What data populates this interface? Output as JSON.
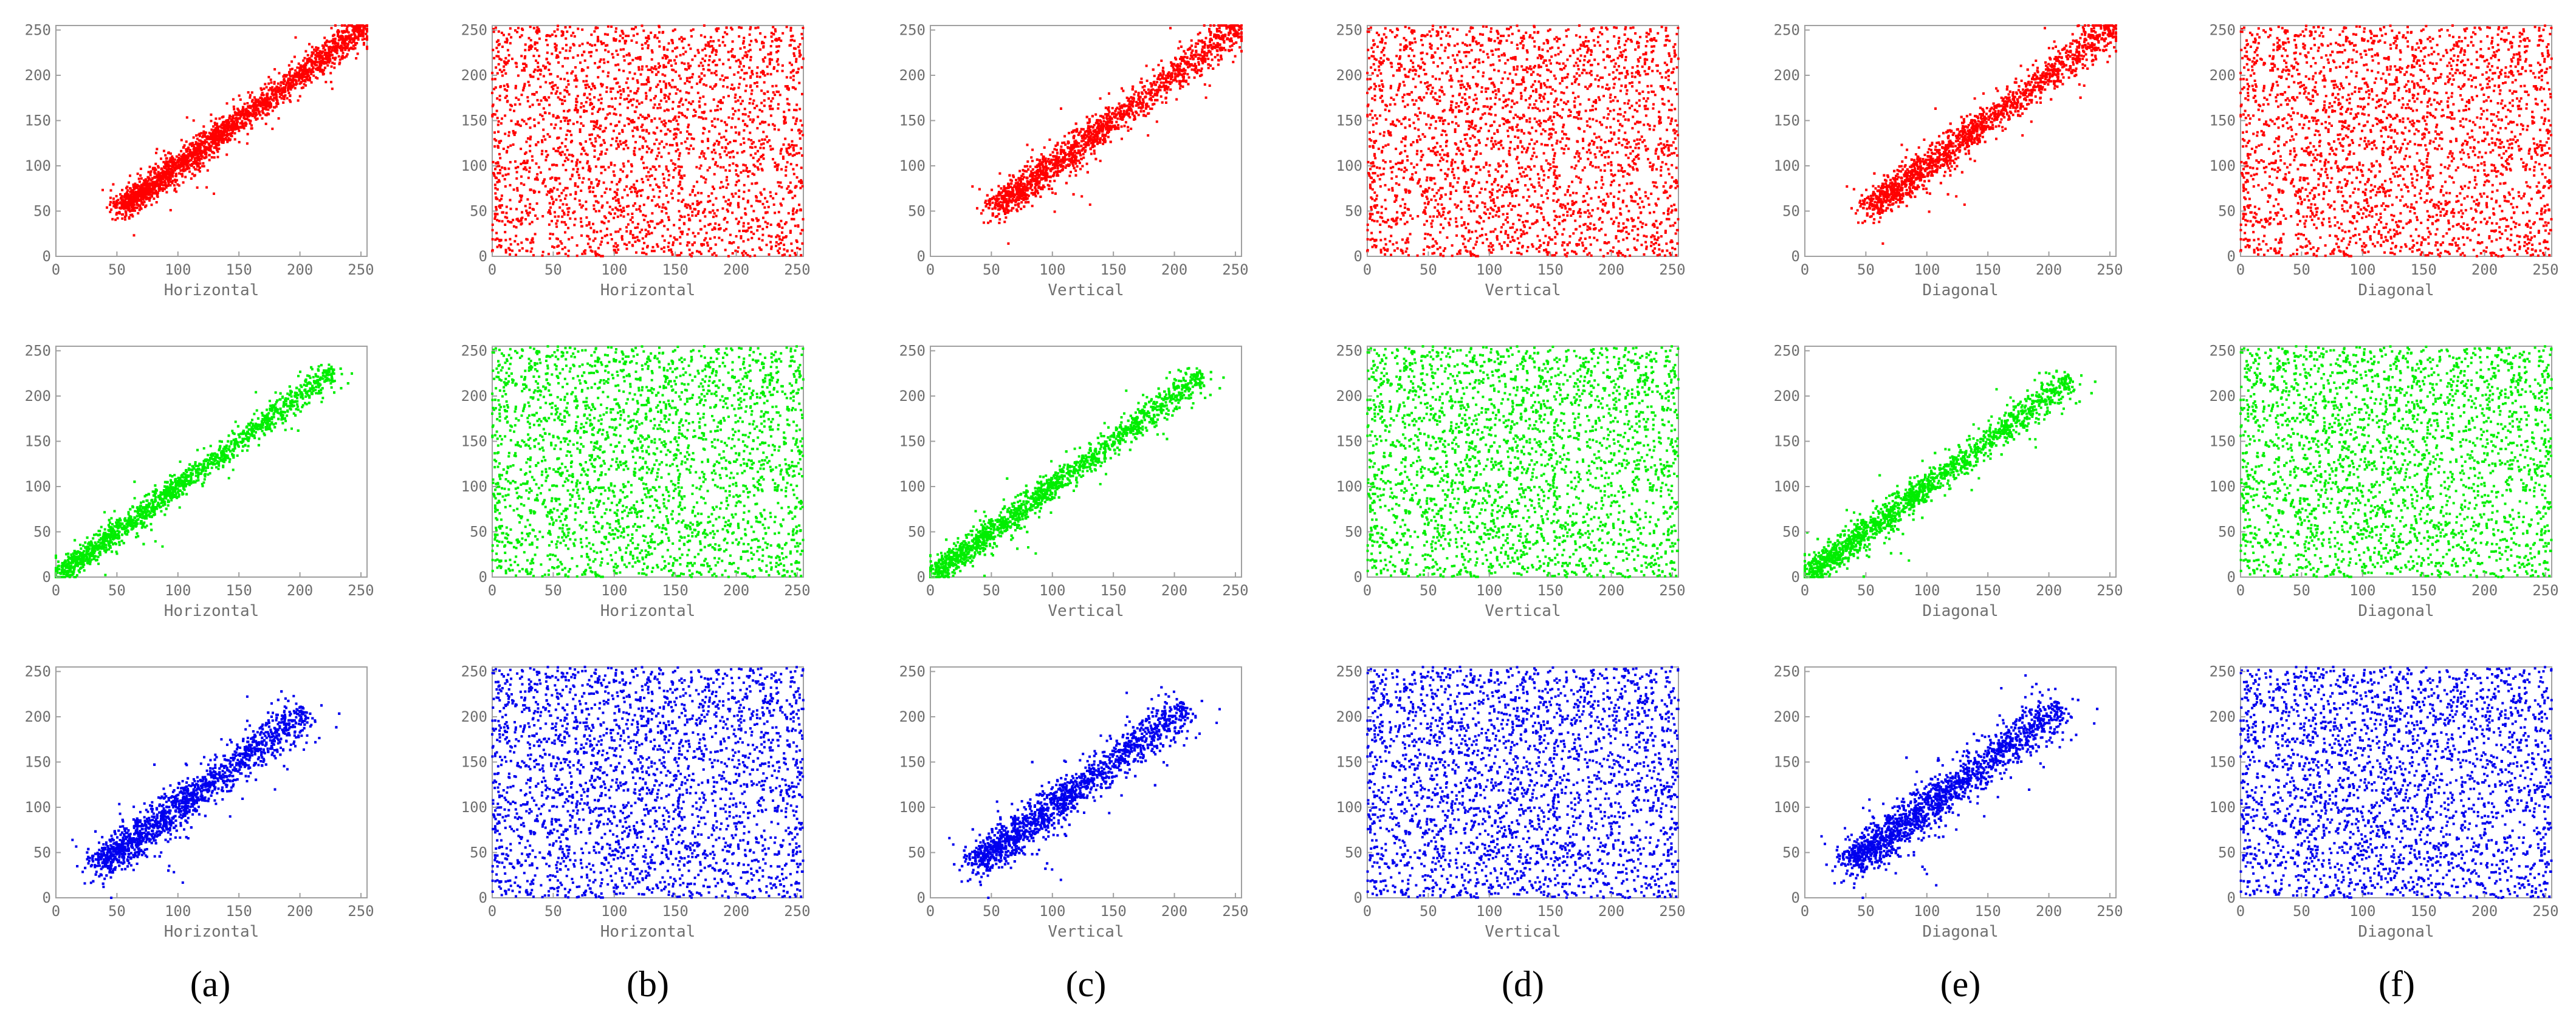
{
  "figure": {
    "captions": [
      "(a)",
      "(b)",
      "(c)",
      "(d)",
      "(e)",
      "(f)"
    ]
  },
  "chart_data": [
    {
      "type": "scatter",
      "title": "",
      "xlabel": "Horizontal",
      "ylabel": "",
      "xlim": [
        0,
        255
      ],
      "ylim": [
        0,
        255
      ],
      "xticks": [
        0,
        50,
        100,
        150,
        200,
        250
      ],
      "yticks": [
        0,
        50,
        100,
        150,
        200,
        250
      ],
      "color": "#ff0000",
      "pattern": "correlated",
      "x_range": [
        55,
        255
      ],
      "y_range": [
        55,
        255
      ],
      "spread": 9,
      "n_points": 2200
    },
    {
      "type": "scatter",
      "title": "",
      "xlabel": "Horizontal",
      "ylabel": "",
      "xlim": [
        0,
        255
      ],
      "ylim": [
        0,
        255
      ],
      "xticks": [
        0,
        50,
        100,
        150,
        200,
        250
      ],
      "yticks": [
        0,
        50,
        100,
        150,
        200,
        250
      ],
      "color": "#ff0000",
      "pattern": "uniform",
      "x_range": [
        0,
        255
      ],
      "y_range": [
        0,
        255
      ],
      "spread": 0,
      "n_points": 2600
    },
    {
      "type": "scatter",
      "title": "",
      "xlabel": "Vertical",
      "ylabel": "",
      "xlim": [
        0,
        255
      ],
      "ylim": [
        0,
        255
      ],
      "xticks": [
        0,
        50,
        100,
        150,
        200,
        250
      ],
      "yticks": [
        0,
        50,
        100,
        150,
        200,
        250
      ],
      "color": "#ff0000",
      "pattern": "correlated",
      "x_range": [
        55,
        255
      ],
      "y_range": [
        55,
        255
      ],
      "spread": 11,
      "n_points": 2200
    },
    {
      "type": "scatter",
      "title": "",
      "xlabel": "Vertical",
      "ylabel": "",
      "xlim": [
        0,
        255
      ],
      "ylim": [
        0,
        255
      ],
      "xticks": [
        0,
        50,
        100,
        150,
        200,
        250
      ],
      "yticks": [
        0,
        50,
        100,
        150,
        200,
        250
      ],
      "color": "#ff0000",
      "pattern": "uniform",
      "x_range": [
        0,
        255
      ],
      "y_range": [
        0,
        255
      ],
      "spread": 0,
      "n_points": 2600
    },
    {
      "type": "scatter",
      "title": "",
      "xlabel": "Diagonal",
      "ylabel": "",
      "xlim": [
        0,
        255
      ],
      "ylim": [
        0,
        255
      ],
      "xticks": [
        0,
        50,
        100,
        150,
        200,
        250
      ],
      "yticks": [
        0,
        50,
        100,
        150,
        200,
        250
      ],
      "color": "#ff0000",
      "pattern": "correlated",
      "x_range": [
        55,
        255
      ],
      "y_range": [
        55,
        255
      ],
      "spread": 11,
      "n_points": 2200
    },
    {
      "type": "scatter",
      "title": "",
      "xlabel": "Diagonal",
      "ylabel": "",
      "xlim": [
        0,
        255
      ],
      "ylim": [
        0,
        255
      ],
      "xticks": [
        0,
        50,
        100,
        150,
        200,
        250
      ],
      "yticks": [
        0,
        50,
        100,
        150,
        200,
        250
      ],
      "color": "#ff0000",
      "pattern": "uniform",
      "x_range": [
        0,
        255
      ],
      "y_range": [
        0,
        255
      ],
      "spread": 0,
      "n_points": 2600
    },
    {
      "type": "scatter",
      "title": "",
      "xlabel": "Horizontal",
      "ylabel": "",
      "xlim": [
        0,
        255
      ],
      "ylim": [
        0,
        255
      ],
      "xticks": [
        0,
        50,
        100,
        150,
        200,
        250
      ],
      "yticks": [
        0,
        50,
        100,
        150,
        200,
        250
      ],
      "color": "#00ee00",
      "pattern": "correlated",
      "x_range": [
        5,
        230
      ],
      "y_range": [
        5,
        230
      ],
      "spread": 8,
      "n_points": 2200
    },
    {
      "type": "scatter",
      "title": "",
      "xlabel": "Horizontal",
      "ylabel": "",
      "xlim": [
        0,
        255
      ],
      "ylim": [
        0,
        255
      ],
      "xticks": [
        0,
        50,
        100,
        150,
        200,
        250
      ],
      "yticks": [
        0,
        50,
        100,
        150,
        200,
        250
      ],
      "color": "#00ee00",
      "pattern": "uniform",
      "x_range": [
        0,
        255
      ],
      "y_range": [
        0,
        255
      ],
      "spread": 0,
      "n_points": 2600
    },
    {
      "type": "scatter",
      "title": "",
      "xlabel": "Vertical",
      "ylabel": "",
      "xlim": [
        0,
        255
      ],
      "ylim": [
        0,
        255
      ],
      "xticks": [
        0,
        50,
        100,
        150,
        200,
        250
      ],
      "yticks": [
        0,
        50,
        100,
        150,
        200,
        250
      ],
      "color": "#00ee00",
      "pattern": "correlated",
      "x_range": [
        5,
        225
      ],
      "y_range": [
        5,
        225
      ],
      "spread": 9,
      "n_points": 2200
    },
    {
      "type": "scatter",
      "title": "",
      "xlabel": "Vertical",
      "ylabel": "",
      "xlim": [
        0,
        255
      ],
      "ylim": [
        0,
        255
      ],
      "xticks": [
        0,
        50,
        100,
        150,
        200,
        250
      ],
      "yticks": [
        0,
        50,
        100,
        150,
        200,
        250
      ],
      "color": "#00ee00",
      "pattern": "uniform",
      "x_range": [
        0,
        255
      ],
      "y_range": [
        0,
        255
      ],
      "spread": 0,
      "n_points": 2600
    },
    {
      "type": "scatter",
      "title": "",
      "xlabel": "Diagonal",
      "ylabel": "",
      "xlim": [
        0,
        255
      ],
      "ylim": [
        0,
        255
      ],
      "xticks": [
        0,
        50,
        100,
        150,
        200,
        250
      ],
      "yticks": [
        0,
        50,
        100,
        150,
        200,
        250
      ],
      "color": "#00ee00",
      "pattern": "correlated",
      "x_range": [
        5,
        220
      ],
      "y_range": [
        5,
        220
      ],
      "spread": 10,
      "n_points": 2200
    },
    {
      "type": "scatter",
      "title": "",
      "xlabel": "Diagonal",
      "ylabel": "",
      "xlim": [
        0,
        255
      ],
      "ylim": [
        0,
        255
      ],
      "xticks": [
        0,
        50,
        100,
        150,
        200,
        250
      ],
      "yticks": [
        0,
        50,
        100,
        150,
        200,
        250
      ],
      "color": "#00ee00",
      "pattern": "uniform",
      "x_range": [
        0,
        255
      ],
      "y_range": [
        0,
        255
      ],
      "spread": 0,
      "n_points": 2600
    },
    {
      "type": "scatter",
      "title": "",
      "xlabel": "Horizontal",
      "ylabel": "",
      "xlim": [
        0,
        255
      ],
      "ylim": [
        0,
        255
      ],
      "xticks": [
        0,
        50,
        100,
        150,
        200,
        250
      ],
      "yticks": [
        0,
        50,
        100,
        150,
        200,
        250
      ],
      "color": "#0000ee",
      "pattern": "correlated",
      "x_range": [
        38,
        205
      ],
      "y_range": [
        38,
        205
      ],
      "spread": 13,
      "n_points": 2200
    },
    {
      "type": "scatter",
      "title": "",
      "xlabel": "Horizontal",
      "ylabel": "",
      "xlim": [
        0,
        255
      ],
      "ylim": [
        0,
        255
      ],
      "xticks": [
        0,
        50,
        100,
        150,
        200,
        250
      ],
      "yticks": [
        0,
        50,
        100,
        150,
        200,
        250
      ],
      "color": "#0000ee",
      "pattern": "uniform",
      "x_range": [
        0,
        255
      ],
      "y_range": [
        0,
        255
      ],
      "spread": 0,
      "n_points": 2600
    },
    {
      "type": "scatter",
      "title": "",
      "xlabel": "Vertical",
      "ylabel": "",
      "xlim": [
        0,
        255
      ],
      "ylim": [
        0,
        255
      ],
      "xticks": [
        0,
        50,
        100,
        150,
        200,
        250
      ],
      "yticks": [
        0,
        50,
        100,
        150,
        200,
        250
      ],
      "color": "#0000ee",
      "pattern": "correlated",
      "x_range": [
        40,
        210
      ],
      "y_range": [
        40,
        210
      ],
      "spread": 13,
      "n_points": 2200
    },
    {
      "type": "scatter",
      "title": "",
      "xlabel": "Vertical",
      "ylabel": "",
      "xlim": [
        0,
        255
      ],
      "ylim": [
        0,
        255
      ],
      "xticks": [
        0,
        50,
        100,
        150,
        200,
        250
      ],
      "yticks": [
        0,
        50,
        100,
        150,
        200,
        250
      ],
      "color": "#0000ee",
      "pattern": "uniform",
      "x_range": [
        0,
        255
      ],
      "y_range": [
        0,
        255
      ],
      "spread": 0,
      "n_points": 2600
    },
    {
      "type": "scatter",
      "title": "",
      "xlabel": "Diagonal",
      "ylabel": "",
      "xlim": [
        0,
        255
      ],
      "ylim": [
        0,
        255
      ],
      "xticks": [
        0,
        50,
        100,
        150,
        200,
        250
      ],
      "yticks": [
        0,
        50,
        100,
        150,
        200,
        250
      ],
      "color": "#0000ee",
      "pattern": "correlated",
      "x_range": [
        40,
        210
      ],
      "y_range": [
        40,
        210
      ],
      "spread": 14,
      "n_points": 2200
    },
    {
      "type": "scatter",
      "title": "",
      "xlabel": "Diagonal",
      "ylabel": "",
      "xlim": [
        0,
        255
      ],
      "ylim": [
        0,
        255
      ],
      "xticks": [
        0,
        50,
        100,
        150,
        200,
        250
      ],
      "yticks": [
        0,
        50,
        100,
        150,
        200,
        250
      ],
      "color": "#0000ee",
      "pattern": "uniform",
      "x_range": [
        0,
        255
      ],
      "y_range": [
        0,
        255
      ],
      "spread": 0,
      "n_points": 2600
    }
  ]
}
